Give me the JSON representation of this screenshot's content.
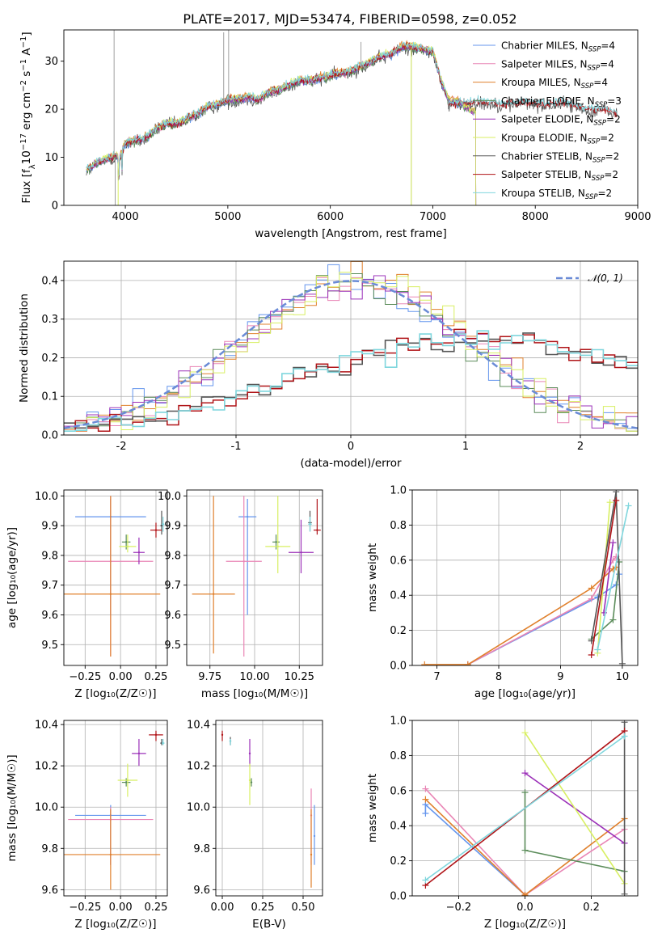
{
  "figure": {
    "title": "PLATE=2017, MJD=53474, FIBERID=0598, z=0.052"
  },
  "colors": {
    "c0": "#6495ed",
    "c1": "#e985b5",
    "c2": "#e0802c",
    "c3": "#5b8c5a",
    "c4": "#9b30b8",
    "c5": "#d8ef62",
    "c6": "#555555",
    "c7": "#b01418",
    "c8": "#7fd6dd",
    "gauss": "#6a8bd6"
  },
  "chart_data": [
    {
      "id": "spectrum",
      "type": "line",
      "xlabel": "wavelength [Angstrom, rest frame]",
      "ylabel": "Flux [f_λ 10^{-17} erg cm^{-2} s^{-1} A^{-1}]",
      "xlim": [
        3400,
        9000
      ],
      "ylim": [
        0,
        36.5
      ],
      "xticks": [
        4000,
        5000,
        6000,
        7000,
        8000,
        9000
      ],
      "yticks": [
        0,
        10,
        20,
        30
      ],
      "legend_position": "top-right",
      "series": [
        {
          "name": "Chabrier MILES, N_SSP=4",
          "color": "c0"
        },
        {
          "name": "Salpeter MILES, N_SSP=4",
          "color": "c1"
        },
        {
          "name": "Kroupa MILES, N_SSP=4",
          "color": "c2"
        },
        {
          "name": "Chabrier ELODIE, N_SSP=3",
          "color": "c3"
        },
        {
          "name": "Salpeter ELODIE, N_SSP=2",
          "color": "c4"
        },
        {
          "name": "Kroupa ELODIE, N_SSP=2",
          "color": "c5"
        },
        {
          "name": "Chabrier STELIB, N_SSP=2",
          "color": "c6"
        },
        {
          "name": "Salpeter STELIB, N_SSP=2",
          "color": "c7"
        },
        {
          "name": "Kroupa STELIB, N_SSP=2",
          "color": "c8"
        }
      ],
      "continuum_x": [
        3620,
        3700,
        3800,
        3900,
        3950,
        4000,
        4100,
        4200,
        4300,
        4400,
        4500,
        4600,
        4700,
        4800,
        4900,
        5000,
        5100,
        5200,
        5300,
        5400,
        5500,
        5600,
        5700,
        5800,
        5900,
        6000,
        6100,
        6200,
        6300,
        6400,
        6500,
        6600,
        6700,
        6780,
        6900,
        7000,
        7080,
        7150,
        7250,
        7350,
        7420
      ],
      "continuum_y": [
        7.5,
        8.5,
        9.5,
        10.2,
        10,
        13,
        13.5,
        14,
        16,
        17,
        17,
        18,
        19,
        20.5,
        21,
        22,
        22,
        22.5,
        22,
        23.5,
        24,
        25,
        26,
        26,
        26.5,
        27,
        27.5,
        28,
        29,
        30,
        31,
        31.5,
        33,
        33,
        32.5,
        32,
        26,
        22,
        21.5,
        20,
        19.5
      ],
      "stelib_continuum_x": [
        7150,
        7300,
        7500,
        7700,
        7900,
        8100,
        8300,
        8500,
        8700,
        8800
      ],
      "stelib_continuum_y": [
        21,
        21.5,
        21.5,
        21,
        21.5,
        21,
        21.5,
        20,
        20,
        19
      ],
      "legend_continuum_x": [
        5400,
        5700,
        6000,
        6300,
        6500,
        6700,
        6800,
        6900,
        7000,
        7100
      ],
      "legend_continuum_y": [
        24,
        25.5,
        27,
        28.5,
        30,
        31.5,
        32,
        33,
        32,
        28
      ]
    },
    {
      "id": "residual-histogram",
      "type": "line",
      "xlabel": "(data-model)/error",
      "ylabel": "Normed distribution",
      "xlim": [
        -2.5,
        2.5
      ],
      "ylim": [
        0,
        0.45
      ],
      "xticks": [
        -2,
        -1,
        0,
        1,
        2
      ],
      "yticks": [
        0.0,
        0.1,
        0.2,
        0.3,
        0.4
      ],
      "legend": "𝒩(0, 1)",
      "legend_position": "top-right",
      "narrow_widths": {
        "c0": 1.0,
        "c1": 1.0,
        "c2": 1.0,
        "c3": 1.0,
        "c4": 1.0,
        "c5": 1.0,
        "c6": 1.6,
        "c7": 1.5,
        "c8": 1.6
      },
      "wide_curves": [
        "c6",
        "c7",
        "c8"
      ]
    },
    {
      "id": "z-age",
      "type": "scatter",
      "xlabel": "Z [log₁₀(Z/Z☉)]",
      "ylabel": "age [log₁₀(age/yr)]",
      "xlim": [
        -0.4,
        0.33
      ],
      "ylim": [
        9.43,
        10.02
      ],
      "xticks": [
        -0.25,
        0.0,
        0.25
      ],
      "xticklabels": [
        "−0.25",
        "0.00",
        "0.25"
      ],
      "yticks": [
        9.5,
        9.6,
        9.7,
        9.8,
        9.9,
        10.0
      ],
      "points": [
        {
          "c": "c0",
          "x": -0.07,
          "xe": 0.25,
          "y": 9.93,
          "ylo": 9.6,
          "yhi": 9.99
        },
        {
          "c": "c1",
          "x": -0.07,
          "xe": 0.3,
          "y": 9.78,
          "ylo": 9.46,
          "yhi": 10.0
        },
        {
          "c": "c2",
          "x": -0.07,
          "xe": 0.35,
          "y": 9.67,
          "ylo": 9.46,
          "yhi": 10.0
        },
        {
          "c": "c3",
          "x": 0.04,
          "xe": 0.03,
          "y": 9.845,
          "ylo": 9.82,
          "yhi": 9.87
        },
        {
          "c": "c4",
          "x": 0.13,
          "xe": 0.04,
          "y": 9.81,
          "ylo": 9.77,
          "yhi": 9.86
        },
        {
          "c": "c5",
          "x": 0.05,
          "xe": 0.06,
          "y": 9.83,
          "ylo": 9.81,
          "yhi": 9.87
        },
        {
          "c": "c6",
          "x": 0.29,
          "xe": 0.01,
          "y": 9.9,
          "ylo": 9.87,
          "yhi": 9.95
        },
        {
          "c": "c7",
          "x": 0.25,
          "xe": 0.04,
          "y": 9.885,
          "ylo": 9.86,
          "yhi": 9.91
        },
        {
          "c": "c8",
          "x": 0.3,
          "xe": 0.01,
          "y": 9.905,
          "ylo": 9.88,
          "yhi": 9.93
        }
      ]
    },
    {
      "id": "mass-age",
      "type": "scatter",
      "xlabel": "mass [log₁₀(M/M☉)]",
      "ylabel": "",
      "xlim": [
        9.62,
        10.38
      ],
      "ylim": [
        9.43,
        10.02
      ],
      "xticks": [
        9.75,
        10.0,
        10.25
      ],
      "xticklabels": [
        "9.75",
        "10.00",
        "10.25"
      ],
      "yticks": [
        9.5,
        9.6,
        9.7,
        9.8,
        9.9,
        10.0
      ],
      "points": [
        {
          "c": "c0",
          "x": 9.96,
          "xe": 0.05,
          "y": 9.93,
          "ylo": 9.6,
          "yhi": 9.99
        },
        {
          "c": "c1",
          "x": 9.94,
          "xe": 0.1,
          "y": 9.78,
          "ylo": 9.46,
          "yhi": 10.0
        },
        {
          "c": "c2",
          "x": 9.77,
          "xe": 0.12,
          "y": 9.67,
          "ylo": 9.47,
          "yhi": 10.0
        },
        {
          "c": "c3",
          "x": 10.12,
          "xe": 0.02,
          "y": 9.845,
          "ylo": 9.82,
          "yhi": 9.87
        },
        {
          "c": "c4",
          "x": 10.26,
          "xe": 0.07,
          "y": 9.81,
          "ylo": 9.74,
          "yhi": 9.92
        },
        {
          "c": "c5",
          "x": 10.13,
          "xe": 0.07,
          "y": 9.83,
          "ylo": 9.74,
          "yhi": 10.0
        },
        {
          "c": "c6",
          "x": 10.31,
          "xe": 0.01,
          "y": 9.91,
          "ylo": 9.88,
          "yhi": 9.95
        },
        {
          "c": "c7",
          "x": 10.35,
          "xe": 0.02,
          "y": 9.885,
          "ylo": 9.87,
          "yhi": 9.99
        },
        {
          "c": "c8",
          "x": 10.31,
          "xe": 0.01,
          "y": 9.905,
          "ylo": 9.88,
          "yhi": 9.93
        }
      ]
    },
    {
      "id": "age-weight",
      "type": "line",
      "xlabel": "age [log₁₀(age/yr)]",
      "ylabel": "mass weight",
      "xlim": [
        6.6,
        10.25
      ],
      "ylim": [
        0,
        1.0
      ],
      "xticks": [
        7,
        8,
        9,
        10
      ],
      "yticks": [
        0.0,
        0.2,
        0.4,
        0.6,
        0.8,
        1.0
      ],
      "series": [
        {
          "c": "c0",
          "x": [
            7.5,
            9.6,
            9.9,
            9.95
          ],
          "y": [
            0.005,
            0.39,
            0.46,
            0.52
          ]
        },
        {
          "c": "c1",
          "x": [
            7.5,
            9.5,
            9.85,
            9.9
          ],
          "y": [
            0.005,
            0.38,
            0.6,
            0.62
          ]
        },
        {
          "c": "c2",
          "x": [
            6.8,
            7.5,
            9.5,
            9.85,
            9.9
          ],
          "y": [
            0.005,
            0.005,
            0.44,
            0.55,
            0.56
          ]
        },
        {
          "c": "c3",
          "x": [
            9.5,
            9.85,
            9.95
          ],
          "y": [
            0.15,
            0.26,
            0.59
          ]
        },
        {
          "c": "c4",
          "x": [
            9.7,
            9.85
          ],
          "y": [
            0.3,
            0.7
          ]
        },
        {
          "c": "c5",
          "x": [
            9.6,
            9.8
          ],
          "y": [
            0.07,
            0.93
          ]
        },
        {
          "c": "c6",
          "x": [
            9.5,
            9.9,
            10.0
          ],
          "y": [
            0.14,
            0.99,
            0.01
          ]
        },
        {
          "c": "c7",
          "x": [
            9.5,
            9.9
          ],
          "y": [
            0.06,
            0.94
          ]
        },
        {
          "c": "c8",
          "x": [
            9.6,
            10.1
          ],
          "y": [
            0.09,
            0.91
          ]
        }
      ]
    },
    {
      "id": "z-mass",
      "type": "scatter",
      "xlabel": "Z [log₁₀(Z/Z☉)]",
      "ylabel": "mass [log₁₀(M/M☉)]",
      "xlim": [
        -0.4,
        0.33
      ],
      "ylim": [
        9.57,
        10.42
      ],
      "xticks": [
        -0.25,
        0.0,
        0.25
      ],
      "xticklabels": [
        "−0.25",
        "0.00",
        "0.25"
      ],
      "yticks": [
        9.6,
        9.8,
        10.0,
        10.2,
        10.4
      ],
      "points": [
        {
          "c": "c0",
          "x": -0.07,
          "xe": 0.25,
          "y": 9.96,
          "ylo": 9.72,
          "yhi": 10.01
        },
        {
          "c": "c1",
          "x": -0.07,
          "xe": 0.3,
          "y": 9.94,
          "ylo": 9.72,
          "yhi": 10.0
        },
        {
          "c": "c2",
          "x": -0.07,
          "xe": 0.35,
          "y": 9.77,
          "ylo": 9.6,
          "yhi": 9.99
        },
        {
          "c": "c3",
          "x": 0.04,
          "xe": 0.03,
          "y": 10.12,
          "ylo": 10.1,
          "yhi": 10.14
        },
        {
          "c": "c4",
          "x": 0.13,
          "xe": 0.05,
          "y": 10.26,
          "ylo": 10.2,
          "yhi": 10.33
        },
        {
          "c": "c5",
          "x": 0.05,
          "xe": 0.07,
          "y": 10.13,
          "ylo": 10.05,
          "yhi": 10.21
        },
        {
          "c": "c6",
          "x": 0.29,
          "xe": 0.01,
          "y": 10.31,
          "ylo": 10.3,
          "yhi": 10.33
        },
        {
          "c": "c7",
          "x": 0.25,
          "xe": 0.05,
          "y": 10.35,
          "ylo": 10.32,
          "yhi": 10.37
        },
        {
          "c": "c8",
          "x": 0.3,
          "xe": 0.01,
          "y": 10.31,
          "ylo": 10.3,
          "yhi": 10.33
        }
      ]
    },
    {
      "id": "ebv-mass",
      "type": "scatter",
      "xlabel": "E(B-V)",
      "ylabel": "",
      "xlim": [
        -0.04,
        0.62
      ],
      "ylim": [
        9.57,
        10.42
      ],
      "xticks": [
        0.0,
        0.25,
        0.5
      ],
      "xticklabels": [
        "0.00",
        "0.25",
        "0.50"
      ],
      "yticks": [
        9.6,
        9.8,
        10.0,
        10.2,
        10.4
      ],
      "points": [
        {
          "c": "c0",
          "x": 0.57,
          "y": 9.86,
          "ylo": 9.72,
          "yhi": 10.01
        },
        {
          "c": "c1",
          "x": 0.55,
          "y": 9.96,
          "ylo": 9.72,
          "yhi": 10.09
        },
        {
          "c": "c2",
          "x": 0.55,
          "y": 9.77,
          "ylo": 9.61,
          "yhi": 9.99
        },
        {
          "c": "c3",
          "x": 0.18,
          "y": 10.12,
          "ylo": 10.1,
          "yhi": 10.14
        },
        {
          "c": "c4",
          "x": 0.17,
          "y": 10.26,
          "ylo": 10.2,
          "yhi": 10.33
        },
        {
          "c": "c5",
          "x": 0.17,
          "y": 10.13,
          "ylo": 10.01,
          "yhi": 10.21
        },
        {
          "c": "c6",
          "x": 0.05,
          "y": 10.32,
          "ylo": 10.3,
          "yhi": 10.34
        },
        {
          "c": "c7",
          "x": 0.0,
          "y": 10.35,
          "ylo": 10.32,
          "yhi": 10.37
        },
        {
          "c": "c8",
          "x": 0.05,
          "y": 10.32,
          "ylo": 10.3,
          "yhi": 10.33
        }
      ]
    },
    {
      "id": "z-weight",
      "type": "line",
      "xlabel": "Z [log₁₀(Z/Z☉)]",
      "ylabel": "mass weight",
      "xlim": [
        -0.34,
        0.34
      ],
      "ylim": [
        0,
        1.0
      ],
      "xticks": [
        -0.2,
        0.0,
        0.2
      ],
      "xticklabels": [
        "−0.2",
        "0.0",
        "0.2"
      ],
      "yticks": [
        0.0,
        0.2,
        0.4,
        0.6,
        0.8,
        1.0
      ],
      "series": [
        {
          "c": "c0",
          "x": [
            -0.3,
            -0.3,
            0.0
          ],
          "y": [
            0.47,
            0.52,
            0.005
          ]
        },
        {
          "c": "c1",
          "x": [
            -0.3,
            0.0,
            0.3
          ],
          "y": [
            0.61,
            0.005,
            0.38
          ]
        },
        {
          "c": "c2",
          "x": [
            -0.3,
            0.0,
            0.3
          ],
          "y": [
            0.55,
            0.005,
            0.44
          ]
        },
        {
          "c": "c3",
          "x": [
            0.0,
            0.0,
            0.3
          ],
          "y": [
            0.59,
            0.26,
            0.14
          ]
        },
        {
          "c": "c4",
          "x": [
            0.0,
            0.3
          ],
          "y": [
            0.7,
            0.3
          ]
        },
        {
          "c": "c5",
          "x": [
            0.0,
            0.3
          ],
          "y": [
            0.93,
            0.07
          ]
        },
        {
          "c": "c6",
          "x": [
            0.3,
            0.3
          ],
          "y": [
            0.99,
            0.01
          ]
        },
        {
          "c": "c7",
          "x": [
            -0.3,
            0.3
          ],
          "y": [
            0.06,
            0.94
          ]
        },
        {
          "c": "c8",
          "x": [
            -0.3,
            0.3
          ],
          "y": [
            0.09,
            0.91
          ]
        }
      ]
    }
  ]
}
